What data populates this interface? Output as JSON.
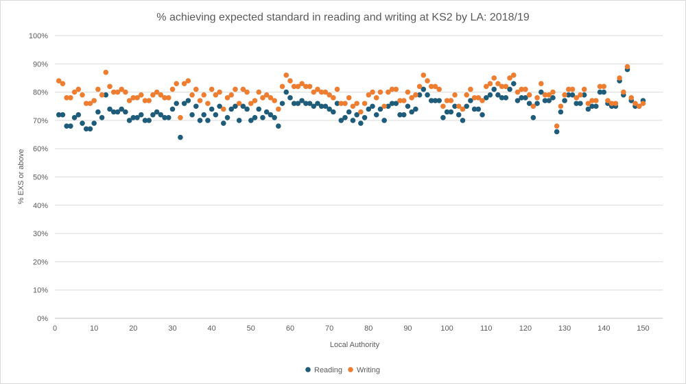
{
  "chart_data": {
    "type": "scatter",
    "title": "% achieving expected standard in reading and writing at KS2 by LA: 2018/19",
    "xlabel": "Local Authority",
    "ylabel": "% EXS or above",
    "xlim": [
      0,
      155
    ],
    "ylim": [
      0,
      100
    ],
    "x_ticks": [
      0,
      10,
      20,
      30,
      40,
      50,
      60,
      70,
      80,
      90,
      100,
      110,
      120,
      130,
      140,
      150
    ],
    "y_ticks": [
      0,
      10,
      20,
      30,
      40,
      50,
      60,
      70,
      80,
      90,
      100
    ],
    "y_tick_format": "percent",
    "grid": "horizontal",
    "legend_position": "bottom",
    "colors": {
      "Reading": "#1f5c7a",
      "Writing": "#ed7d31"
    },
    "x": [
      1,
      2,
      3,
      4,
      5,
      6,
      7,
      8,
      9,
      10,
      11,
      12,
      13,
      14,
      15,
      16,
      17,
      18,
      19,
      20,
      21,
      22,
      23,
      24,
      25,
      26,
      27,
      28,
      29,
      30,
      31,
      32,
      33,
      34,
      35,
      36,
      37,
      38,
      39,
      40,
      41,
      42,
      43,
      44,
      45,
      46,
      47,
      48,
      49,
      50,
      51,
      52,
      53,
      54,
      55,
      56,
      57,
      58,
      59,
      60,
      61,
      62,
      63,
      64,
      65,
      66,
      67,
      68,
      69,
      70,
      71,
      72,
      73,
      74,
      75,
      76,
      77,
      78,
      79,
      80,
      81,
      82,
      83,
      84,
      85,
      86,
      87,
      88,
      89,
      90,
      91,
      92,
      93,
      94,
      95,
      96,
      97,
      98,
      99,
      100,
      101,
      102,
      103,
      104,
      105,
      106,
      107,
      108,
      109,
      110,
      111,
      112,
      113,
      114,
      115,
      116,
      117,
      118,
      119,
      120,
      121,
      122,
      123,
      124,
      125,
      126,
      127,
      128,
      129,
      130,
      131,
      132,
      133,
      134,
      135,
      136,
      137,
      138,
      139,
      140,
      141,
      142,
      143,
      144,
      145,
      146,
      147,
      148,
      149,
      150
    ],
    "series": [
      {
        "name": "Reading",
        "values": [
          72,
          72,
          68,
          68,
          71,
          72,
          69,
          67,
          67,
          69,
          73,
          71,
          79,
          74,
          73,
          73,
          74,
          73,
          70,
          71,
          71,
          72,
          70,
          70,
          72,
          73,
          72,
          71,
          71,
          74,
          76,
          64,
          76,
          77,
          72,
          75,
          70,
          72,
          70,
          74,
          72,
          75,
          69,
          71,
          74,
          75,
          70,
          75,
          74,
          70,
          71,
          74,
          71,
          73,
          72,
          71,
          68,
          76,
          80,
          78,
          76,
          76,
          77,
          76,
          76,
          75,
          76,
          75,
          75,
          74,
          73,
          76,
          70,
          71,
          73,
          70,
          72,
          69,
          71,
          74,
          75,
          72,
          74,
          70,
          75,
          76,
          76,
          72,
          72,
          75,
          73,
          74,
          79,
          81,
          79,
          77,
          77,
          77,
          71,
          73,
          73,
          75,
          72,
          70,
          75,
          77,
          74,
          74,
          72,
          78,
          79,
          81,
          79,
          78,
          78,
          81,
          83,
          77,
          78,
          78,
          76,
          71,
          76,
          80,
          77,
          77,
          78,
          66,
          73,
          77,
          79,
          79,
          76,
          76,
          79,
          74,
          75,
          75,
          80,
          80,
          76,
          75,
          75,
          84,
          79,
          88,
          77,
          75,
          75,
          77
        ]
      },
      {
        "name": "Writing",
        "values": [
          84,
          83,
          78,
          78,
          80,
          81,
          79,
          76,
          76,
          77,
          81,
          79,
          87,
          82,
          80,
          80,
          81,
          80,
          77,
          78,
          78,
          79,
          77,
          77,
          79,
          80,
          79,
          78,
          78,
          81,
          83,
          71,
          83,
          84,
          79,
          81,
          77,
          79,
          76,
          81,
          79,
          80,
          74,
          78,
          79,
          81,
          76,
          81,
          80,
          76,
          77,
          80,
          78,
          79,
          78,
          77,
          74,
          82,
          86,
          84,
          82,
          82,
          83,
          82,
          82,
          80,
          81,
          80,
          80,
          79,
          78,
          81,
          76,
          76,
          78,
          75,
          76,
          73,
          76,
          79,
          80,
          78,
          80,
          75,
          80,
          81,
          81,
          77,
          77,
          80,
          78,
          79,
          82,
          86,
          84,
          82,
          82,
          81,
          75,
          77,
          77,
          79,
          75,
          74,
          79,
          81,
          78,
          78,
          77,
          82,
          83,
          85,
          83,
          82,
          82,
          85,
          86,
          80,
          81,
          81,
          79,
          75,
          78,
          83,
          79,
          79,
          80,
          68,
          75,
          79,
          81,
          81,
          78,
          79,
          81,
          76,
          77,
          77,
          82,
          82,
          77,
          76,
          76,
          85,
          80,
          89,
          78,
          76,
          75,
          76
        ]
      }
    ]
  }
}
